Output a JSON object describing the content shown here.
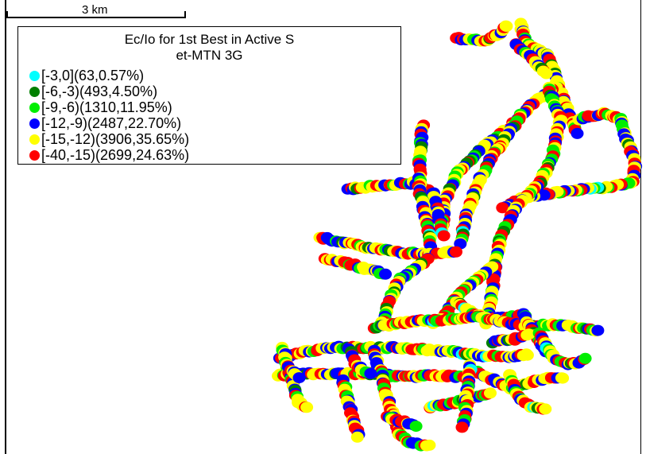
{
  "map": {
    "scale_label": "3 km",
    "legend": {
      "title_line1": "Ec/Io for 1st Best in Active S",
      "title_line2": "et-MTN 3G",
      "items": [
        {
          "label": "[-3,0](63,0.57%)",
          "color": "#00ffff"
        },
        {
          "label": "[-6,-3)(493,4.50%)",
          "color": "#007f00"
        },
        {
          "label": "[-9,-6)(1310,11.95%)",
          "color": "#00ee00"
        },
        {
          "label": "[-12,-9)(2487,22.70%)",
          "color": "#0000ff"
        },
        {
          "label": "[-15,-12)(3906,35.65%)",
          "color": "#ffff00"
        },
        {
          "label": "[-40,-15)(2699,24.63%)",
          "color": "#ff0000"
        }
      ]
    }
  }
}
